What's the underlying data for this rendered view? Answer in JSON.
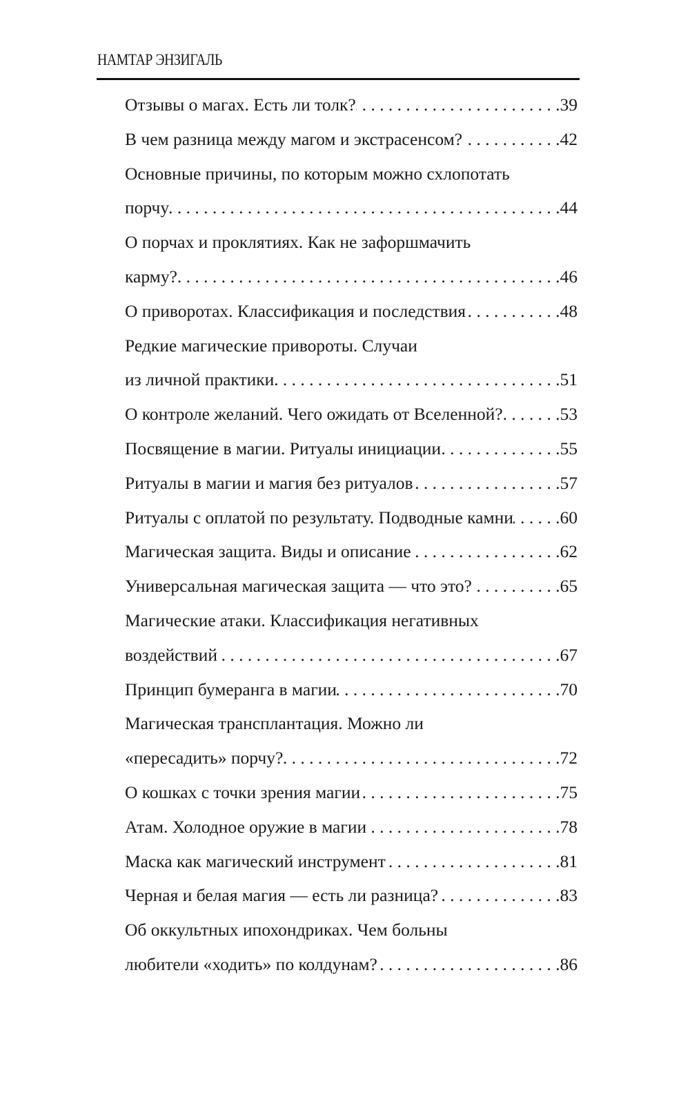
{
  "header": {
    "running_title": "НАМТАР ЭНЗИГАЛЬ"
  },
  "toc": [
    {
      "lines": [
        "Отзывы о магах. Есть ли толк?"
      ],
      "page": "39"
    },
    {
      "lines": [
        "В чем разница между магом и экстрасенсом?"
      ],
      "page": "42"
    },
    {
      "lines": [
        "Основные причины, по которым можно схлопотать",
        "порчу"
      ],
      "page": "44"
    },
    {
      "lines": [
        "О порчах и проклятиях. Как не зафоршмачить",
        "карму?"
      ],
      "page": "46"
    },
    {
      "lines": [
        "О приворотах. Классификация и последствия"
      ],
      "page": "48"
    },
    {
      "lines": [
        "Редкие магические привороты. Случаи",
        "из личной практики"
      ],
      "page": "51"
    },
    {
      "lines": [
        "О контроле желаний. Чего ожидать от Вселенной?"
      ],
      "page": "53"
    },
    {
      "lines": [
        "Посвящение в магии. Ритуалы инициации"
      ],
      "page": "55"
    },
    {
      "lines": [
        "Ритуалы в магии и магия без ритуалов"
      ],
      "page": "57"
    },
    {
      "lines": [
        "Ритуалы с оплатой по результату. Подводные камни"
      ],
      "page": "60"
    },
    {
      "lines": [
        "Магическая защита. Виды и описание"
      ],
      "page": "62"
    },
    {
      "lines": [
        "Универсальная магическая защита — что это?"
      ],
      "page": "65"
    },
    {
      "lines": [
        "Магические атаки. Классификация негативных",
        "воздействий"
      ],
      "page": "67"
    },
    {
      "lines": [
        "Принцип бумеранга в магии"
      ],
      "page": "70"
    },
    {
      "lines": [
        "Магическая трансплантация. Можно ли",
        "«пересадить» порчу?"
      ],
      "page": "72"
    },
    {
      "lines": [
        "О кошках с точки зрения магии"
      ],
      "page": "75"
    },
    {
      "lines": [
        "Атам. Холодное оружие в магии"
      ],
      "page": "78"
    },
    {
      "lines": [
        "Маска как магический инструмент"
      ],
      "page": "81"
    },
    {
      "lines": [
        "Черная и белая магия — есть ли разница?"
      ],
      "page": "83"
    },
    {
      "lines": [
        "Об оккультных ипохондриках. Чем больны",
        "любители «ходить» по колдунам?"
      ],
      "page": "86"
    }
  ]
}
